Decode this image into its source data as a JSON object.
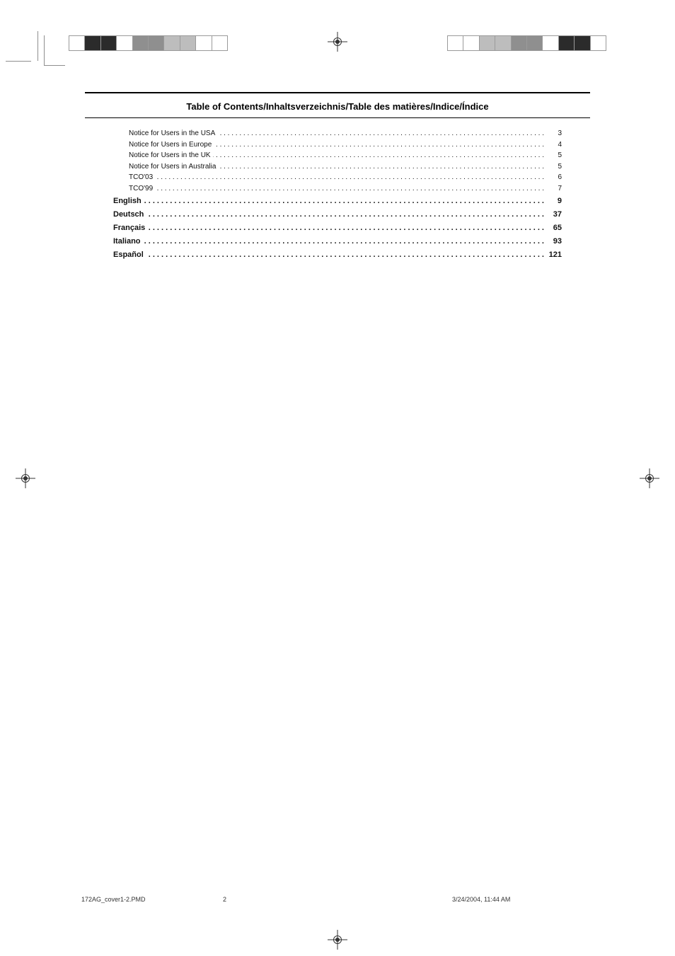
{
  "title": "Table of Contents/Inhaltsverzeichnis/Table des matières/Indice/Índice",
  "toc": {
    "sub": [
      {
        "label": "Notice for Users in the USA",
        "page": "3"
      },
      {
        "label": "Notice for Users in Europe",
        "page": "4"
      },
      {
        "label": "Notice for Users in the UK",
        "page": "5"
      },
      {
        "label": "Notice for Users in Australia",
        "page": "5"
      },
      {
        "label": "TCO'03",
        "page": "6"
      },
      {
        "label": "TCO'99",
        "page": "7"
      }
    ],
    "main": [
      {
        "label": "English",
        "page": "9"
      },
      {
        "label": "Deutsch",
        "page": "37"
      },
      {
        "label": "Français",
        "page": "65"
      },
      {
        "label": "Italiano",
        "page": "93"
      },
      {
        "label": "Español",
        "page": "121"
      }
    ]
  },
  "footer": {
    "filename": "172AG_cover1-2.PMD",
    "page_number": "2",
    "datetime": "3/24/2004, 11:44 AM"
  },
  "colorbars": {
    "tl": [
      "#ffffff",
      "#2b2b2b",
      "#2b2b2b",
      "#ffffff",
      "#8f8f8f",
      "#8f8f8f",
      "#bdbdbd",
      "#bdbdbd",
      "#ffffff",
      "#ffffff"
    ],
    "tr": [
      "#ffffff",
      "#ffffff",
      "#bdbdbd",
      "#bdbdbd",
      "#8f8f8f",
      "#8f8f8f",
      "#ffffff",
      "#2b2b2b",
      "#2b2b2b",
      "#ffffff"
    ]
  },
  "colors": {
    "text": "#111111",
    "rule": "#000000",
    "mark": "#8a8a8a",
    "background": "#ffffff"
  },
  "typography": {
    "title_fontsize_pt": 10,
    "title_weight": "bold",
    "body_fontsize_pt": 7.5,
    "body_bold_fontsize_pt": 8,
    "font_family": "Arial, Helvetica, sans-serif"
  }
}
